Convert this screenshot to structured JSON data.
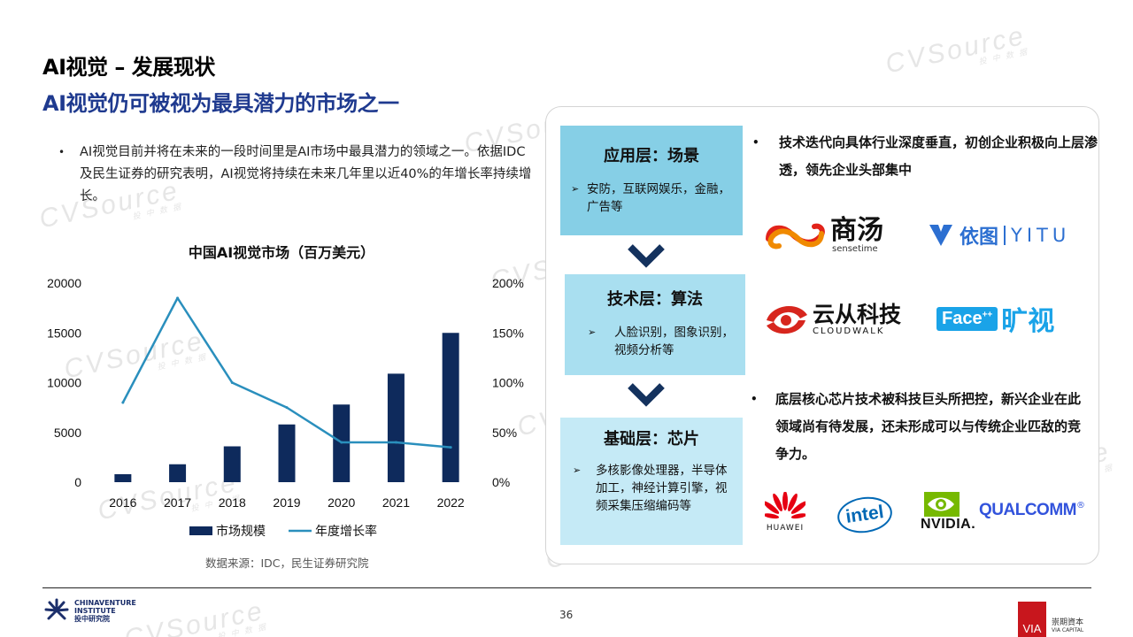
{
  "header": {
    "title": "AI视觉 – 发展现状",
    "subtitle": "AI视觉仍可被视为最具潜力的市场之一"
  },
  "intro": {
    "bullet": "•",
    "text": "AI视觉目前并将在未来的一段时间里是AI市场中最具潜力的领域之一。依据IDC及民生证券的研究表明，AI视觉将持续在未来几年里以近40%的年增长率持续增长。"
  },
  "chart_data": {
    "type": "bar",
    "title": "中国AI视觉市场（百万美元）",
    "categories": [
      "2016",
      "2017",
      "2018",
      "2019",
      "2020",
      "2021",
      "2022"
    ],
    "series": [
      {
        "name": "市场规模",
        "type": "bar",
        "axis": "left",
        "values": [
          800,
          1800,
          3600,
          5800,
          7800,
          10900,
          15000
        ]
      },
      {
        "name": "年度增长率",
        "type": "line",
        "axis": "right",
        "values": [
          80,
          185,
          100,
          75,
          40,
          40,
          35
        ]
      }
    ],
    "left_axis": {
      "ticks": [
        "20000",
        "15000",
        "10000",
        "5000",
        "0"
      ],
      "ylim": [
        0,
        20000
      ]
    },
    "right_axis": {
      "ticks": [
        "200%",
        "150%",
        "100%",
        "50%",
        "0%"
      ],
      "ylim": [
        0,
        200
      ]
    },
    "legend_position": "bottom",
    "colors": {
      "bar": "#0e2a5c",
      "line": "#2a8fbd"
    }
  },
  "source": "数据来源：IDC，民生证券研究院",
  "layers": [
    {
      "title": "应用层：场景",
      "arrow": "➢",
      "desc": "安防，互联网娱乐，金融，广告等"
    },
    {
      "title": "技术层：算法",
      "arrow": "➢",
      "desc": "人脸识别，图象识别，视频分析等"
    },
    {
      "title": "基础层：芯片",
      "arrow": "➢",
      "desc": "多核影像处理器，半导体加工，神经计算引擎，视频采集压缩编码等"
    }
  ],
  "right_bullets": [
    {
      "bullet": "•",
      "text": "技术迭代向具体行业深度垂直，初创企业积极向上层渗透，领先企业头部集中"
    },
    {
      "bullet": "•",
      "text": "底层核心芯片技术被科技巨头所把控，新兴企业在此领域尚有待发展，还未形成可以与传统企业匹敌的竞争力。"
    }
  ],
  "logos": {
    "sensetime": {
      "cn": "商汤",
      "en": "sensetime",
      "icon": "sensetime-logo-icon"
    },
    "yitu": {
      "cn": "依图",
      "en": "YITU",
      "icon": "yitu-logo-icon"
    },
    "cloudwalk": {
      "cn": "云从科技",
      "en": "CLOUDWALK",
      "icon": "cloudwalk-logo-icon"
    },
    "face": {
      "en": "Face",
      "sup": "++",
      "cn": "旷视"
    },
    "huawei": {
      "en": "HUAWEI",
      "icon": "huawei-logo-icon"
    },
    "intel": {
      "en": "intel"
    },
    "nvidia": {
      "en": "NVIDIA.",
      "icon": "nvidia-logo-icon"
    },
    "qualcomm": {
      "en": "QUALCOMM",
      "reg": "®"
    }
  },
  "footer": {
    "page_number": "36",
    "cvi_en_1": "CHINAVENTURE",
    "cvi_en_2": "INSTITUTE",
    "cvi_cn": "投中研究院",
    "via_mark": "VIA",
    "via_cn": "崇期資本",
    "via_en": "VIA CAPITAL"
  },
  "watermark": {
    "en": "CVSource",
    "cn": "投 中 数 据"
  }
}
